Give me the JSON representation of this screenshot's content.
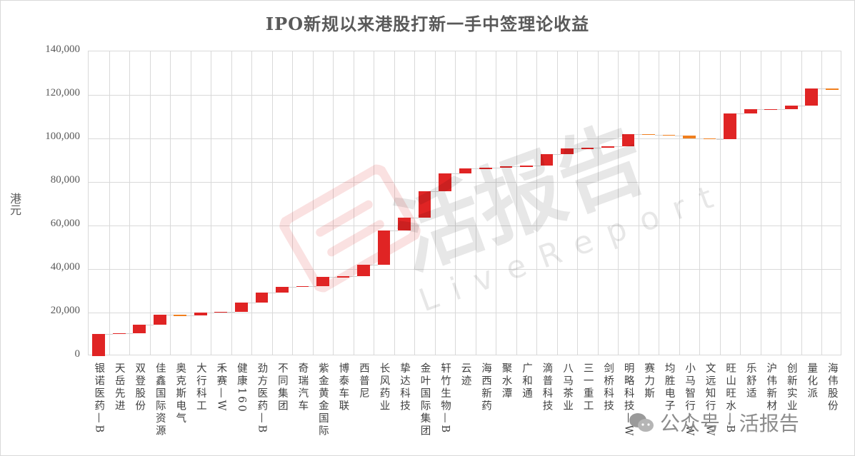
{
  "chart_data": {
    "type": "waterfall",
    "title": "IPO新规以来港股打新一手中签理论收益",
    "xlabel": "",
    "ylabel": "港元",
    "ylim": [
      0,
      140000
    ],
    "yticks": [
      "0",
      "20,000",
      "40,000",
      "60,000",
      "80,000",
      "100,000",
      "120,000",
      "140,000"
    ],
    "grid": true,
    "legend": null,
    "colors": {
      "increase": "#e02424",
      "decrease": "#f07f1e",
      "connector": "#d0d0d0"
    },
    "categories": [
      "银诺医药—B",
      "天岳先进",
      "双登股份",
      "佳鑫国际资源",
      "奥克斯电气",
      "大行科工",
      "禾赛—W",
      "健康160",
      "劲方医药—B",
      "不同集团",
      "奇瑞汽车",
      "紫金黄金国际",
      "博泰车联",
      "西普尼",
      "长风药业",
      "挚达科技",
      "金叶国际集团",
      "轩竹生物—B",
      "云迹",
      "海西新药",
      "聚水潭",
      "广和通",
      "滴普科技",
      "八马茶业",
      "三一重工",
      "剑桥科技",
      "明略科技—W",
      "赛力斯",
      "均胜电子",
      "小马智行—W",
      "文远知行—W",
      "旺山旺水—B",
      "乐舒适",
      "沪伟新材",
      "创新实业",
      "量化派",
      "海伟股份"
    ],
    "values": [
      10200,
      300,
      4000,
      4500,
      -200,
      1300,
      300,
      4300,
      4600,
      2600,
      300,
      4300,
      200,
      5200,
      15700,
      5900,
      12100,
      8200,
      2300,
      400,
      600,
      400,
      5300,
      2700,
      200,
      700,
      5600,
      -300,
      -300,
      -1300,
      -300,
      11800,
      1700,
      200,
      1600,
      7800,
      -200
    ],
    "cumulative_end": [
      10200,
      10500,
      14500,
      19000,
      18800,
      20100,
      20400,
      24700,
      29300,
      31900,
      32200,
      36500,
      36700,
      41900,
      57600,
      63500,
      75600,
      83800,
      86100,
      86500,
      87100,
      87500,
      92800,
      95500,
      95700,
      96400,
      102000,
      101700,
      101400,
      100100,
      99800,
      111600,
      113300,
      113500,
      115100,
      122900,
      122700
    ]
  },
  "watermark": {
    "brand_cn": "活报告",
    "brand_en": "LiveReport",
    "footer": "公众号 · 活报告"
  }
}
